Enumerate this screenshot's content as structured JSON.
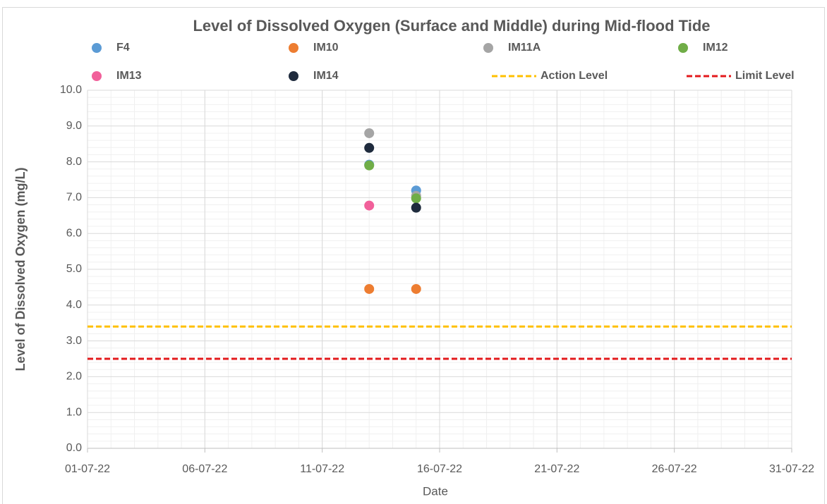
{
  "chart_data": {
    "type": "scatter",
    "title": "Level of Dissolved Oxygen (Surface and Middle) during Mid-flood Tide",
    "xlabel": "Date",
    "ylabel": "Level of Dissolved Oxygen (mg/L)",
    "x": [
      "13-07-22",
      "15-07-22"
    ],
    "series": [
      {
        "name": "F4",
        "color": "#5b9bd5",
        "values": [
          7.92,
          7.2
        ]
      },
      {
        "name": "IM10",
        "color": "#ed7d31",
        "values": [
          4.45,
          4.45
        ]
      },
      {
        "name": "IM11A",
        "color": "#a5a5a5",
        "values": [
          8.8,
          7.05
        ]
      },
      {
        "name": "IM12",
        "color": "#70ad47",
        "values": [
          7.9,
          6.98
        ]
      },
      {
        "name": "IM13",
        "color": "#f1609a",
        "values": [
          6.78,
          null
        ]
      },
      {
        "name": "IM14",
        "color": "#1f2b3d",
        "values": [
          8.39,
          6.72
        ]
      }
    ],
    "reference_lines": [
      {
        "name": "Action Level",
        "color": "#ffc000",
        "value": 3.4,
        "dashed": true
      },
      {
        "name": "Limit Level",
        "color": "#e31a1c",
        "value": 2.5,
        "dashed": true
      }
    ],
    "xlim": [
      "01-07-22",
      "31-07-22"
    ],
    "xticks": [
      "01-07-22",
      "06-07-22",
      "11-07-22",
      "16-07-22",
      "21-07-22",
      "26-07-22",
      "31-07-22"
    ],
    "ylim": [
      0,
      10
    ],
    "yticks": [
      {
        "value": 0,
        "label": "0.0"
      },
      {
        "value": 1,
        "label": "1.0"
      },
      {
        "value": 2,
        "label": "2.0"
      },
      {
        "value": 3,
        "label": "3.0"
      },
      {
        "value": 4,
        "label": "4.0"
      },
      {
        "value": 5,
        "label": "5.0"
      },
      {
        "value": 6,
        "label": "6.0"
      },
      {
        "value": 7,
        "label": "7.0"
      },
      {
        "value": 8,
        "label": "8.0"
      },
      {
        "value": 9,
        "label": "9.0"
      },
      {
        "value": 10,
        "label": "10.0"
      }
    ],
    "grid": true,
    "minor_grid": true,
    "legend": "top"
  }
}
